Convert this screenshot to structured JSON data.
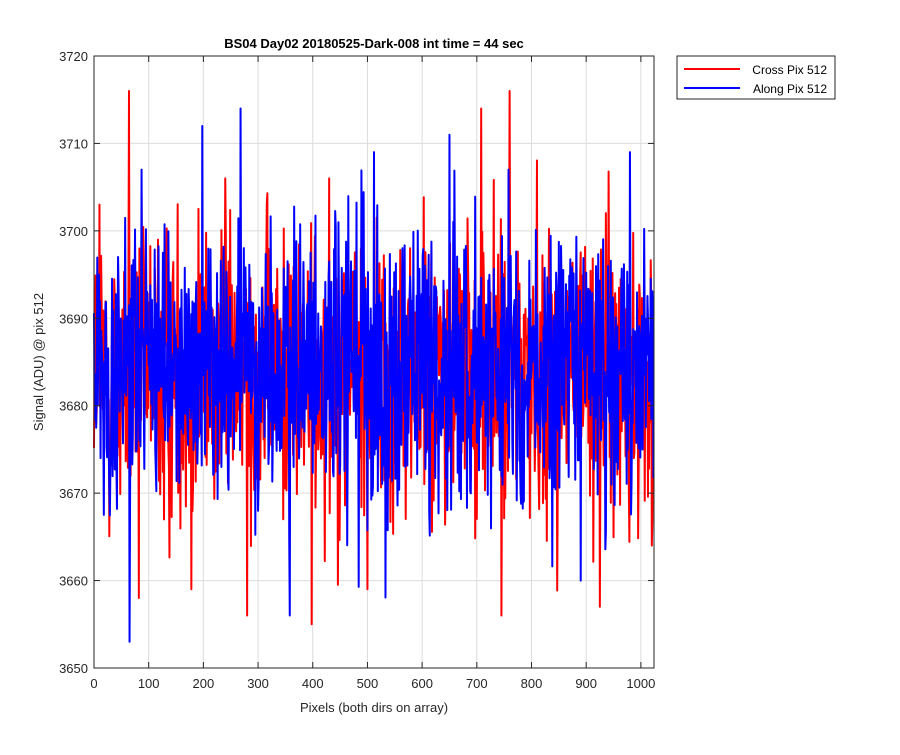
{
  "chart_data": {
    "type": "line",
    "title": "BS04 Day02 20180525-Dark-008 int time = 44 sec",
    "xlabel": "Pixels (both dirs on array)",
    "ylabel": "Signal (ADU) @ pix 512",
    "xlim": [
      0,
      1024
    ],
    "ylim": [
      3650,
      3720
    ],
    "xticks": [
      0,
      100,
      200,
      300,
      400,
      500,
      600,
      700,
      800,
      900,
      1000
    ],
    "yticks": [
      3650,
      3660,
      3670,
      3680,
      3690,
      3700,
      3710,
      3720
    ],
    "grid": true,
    "legend_position": "top-right outside",
    "series": [
      {
        "name": "Cross Pix 512",
        "color": "#ff0000",
        "summary": {
          "n": 1024,
          "mean": 3684,
          "min": 3655,
          "max": 3716
        },
        "notable_points": [
          [
            10,
            3703
          ],
          [
            64,
            3716
          ],
          [
            82,
            3658
          ],
          [
            128,
            3667
          ],
          [
            178,
            3659
          ],
          [
            240,
            3706
          ],
          [
            280,
            3656
          ],
          [
            398,
            3655
          ],
          [
            430,
            3706
          ],
          [
            500,
            3659
          ],
          [
            708,
            3714
          ],
          [
            745,
            3656
          ],
          [
            760,
            3716
          ],
          [
            925,
            3657
          ],
          [
            1020,
            3664
          ]
        ]
      },
      {
        "name": "Along Pix 512",
        "color": "#0000ff",
        "summary": {
          "n": 1024,
          "mean": 3684,
          "min": 3653,
          "max": 3714
        },
        "notable_points": [
          [
            65,
            3653
          ],
          [
            87,
            3707
          ],
          [
            198,
            3712
          ],
          [
            268,
            3714
          ],
          [
            358,
            3656
          ],
          [
            512,
            3709
          ],
          [
            650,
            3711
          ],
          [
            758,
            3707
          ],
          [
            890,
            3660
          ],
          [
            980,
            3709
          ]
        ]
      }
    ]
  }
}
